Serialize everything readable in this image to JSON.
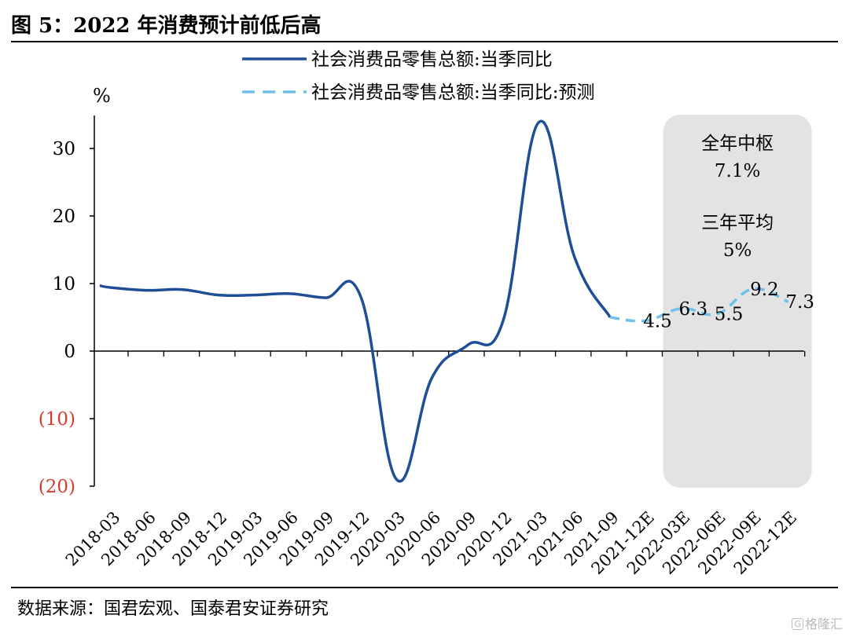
{
  "title": "图 5：2022 年消费预计前低后高",
  "source": "数据来源：国君宏观、国泰君安证券研究",
  "watermark": "格隆汇",
  "colors": {
    "actual": "#1f4e96",
    "forecast": "#6ec1ea",
    "highlight_box": "#e3e3e3",
    "negative_tick": "#d63a2f"
  },
  "annotation_box": {
    "line1": "全年中枢",
    "line2": "7.1%",
    "line3": "三年平均",
    "line4": "5%"
  },
  "chart_data": {
    "type": "line",
    "ylabel": "%",
    "ylim": [
      -20,
      35
    ],
    "y_ticks": [
      {
        "value": 30,
        "label": "30"
      },
      {
        "value": 20,
        "label": "20"
      },
      {
        "value": 10,
        "label": "10"
      },
      {
        "value": 0,
        "label": "0"
      },
      {
        "value": -10,
        "label": "(10)"
      },
      {
        "value": -20,
        "label": "(20)"
      }
    ],
    "categories": [
      "2018-03",
      "2018-06",
      "2018-09",
      "2018-12",
      "2019-03",
      "2019-06",
      "2019-09",
      "2019-12",
      "2020-03",
      "2020-06",
      "2020-09",
      "2020-12",
      "2021-03",
      "2021-06",
      "2021-09",
      "2021-12E",
      "2022-03E",
      "2022-06E",
      "2022-09E",
      "2022-12E"
    ],
    "legend_position": "top",
    "series": [
      {
        "name": "社会消费品零售总额:当季同比",
        "style": "solid",
        "points": [
          {
            "x": "2018-02",
            "y": 9.7
          },
          {
            "x": "2018-03",
            "y": 9.4
          },
          {
            "x": "2018-06",
            "y": 9.0
          },
          {
            "x": "2018-09",
            "y": 9.1
          },
          {
            "x": "2018-12",
            "y": 8.3
          },
          {
            "x": "2019-03",
            "y": 8.3
          },
          {
            "x": "2019-06",
            "y": 8.5
          },
          {
            "x": "2019-09",
            "y": 7.9
          },
          {
            "x": "2019-12",
            "y": 8.0
          },
          {
            "x": "2020-03",
            "y": -19.0
          },
          {
            "x": "2020-06",
            "y": -3.9
          },
          {
            "x": "2020-09",
            "y": 0.9
          },
          {
            "x": "2020-12",
            "y": 4.6
          },
          {
            "x": "2021-03",
            "y": 33.9
          },
          {
            "x": "2021-06",
            "y": 13.9
          },
          {
            "x": "2021-09",
            "y": 5.0
          }
        ]
      },
      {
        "name": "社会消费品零售总额:当季同比:预测",
        "style": "dashed",
        "points": [
          {
            "x": "2021-09",
            "y": 5.0
          },
          {
            "x": "2021-12E",
            "y": 4.5
          },
          {
            "x": "2022-03E",
            "y": 6.3
          },
          {
            "x": "2022-06E",
            "y": 5.5
          },
          {
            "x": "2022-09E",
            "y": 9.2
          },
          {
            "x": "2022-12E",
            "y": 7.3
          }
        ],
        "data_labels": [
          {
            "x": "2021-12E",
            "label": "4.5"
          },
          {
            "x": "2022-03E",
            "label": "6.3"
          },
          {
            "x": "2022-06E",
            "label": "5.5"
          },
          {
            "x": "2022-09E",
            "label": "9.2"
          },
          {
            "x": "2022-12E",
            "label": "7.3"
          }
        ]
      }
    ]
  }
}
